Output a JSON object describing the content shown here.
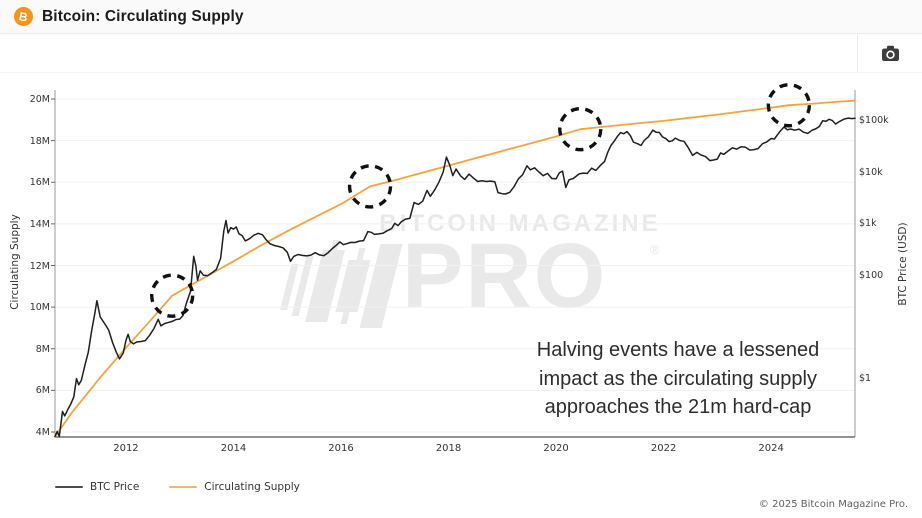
{
  "header": {
    "title": "Bitcoin: Circulating Supply",
    "logo_symbol": "B"
  },
  "watermark": {
    "line1": "BITCOIN MAGAZINE",
    "line2": "PRO",
    "registered": "®"
  },
  "annotation": {
    "text": "Halving events have a lessened\nimpact as the circulating supply\napproaches the 21m hard-cap"
  },
  "legend": [
    {
      "label": "BTC Price",
      "color": "#4d4d4d"
    },
    {
      "label": "Circulating Supply",
      "color": "#f4b660"
    }
  ],
  "footer": {
    "copyright": "© 2025 Bitcoin Magazine Pro."
  },
  "chart_data": {
    "type": "line",
    "title": "Bitcoin: Circulating Supply",
    "grid": "horizontal-only",
    "legend_position": "bottom-left",
    "x_axis": {
      "ticks": [
        2012,
        2014,
        2016,
        2018,
        2020,
        2022,
        2024
      ],
      "range": [
        2010.68,
        2025.56
      ]
    },
    "y_left": {
      "label": "Circulating Supply",
      "ticks": [
        "20M",
        "18M",
        "16M",
        "14M",
        "12M",
        "10M",
        "8M",
        "6M",
        "4M"
      ],
      "tick_values": [
        20,
        18,
        16,
        14,
        12,
        10,
        8,
        6,
        4
      ],
      "range": [
        3.8,
        20.3
      ],
      "unit": "M coins"
    },
    "y_right": {
      "label": "BTC Price (USD)",
      "scale": "log",
      "ticks": [
        "$100k",
        "$10k",
        "$1k",
        "$100",
        "$1"
      ],
      "tick_values": [
        100000,
        10000,
        1000,
        100,
        1
      ]
    },
    "halving_markers": [
      {
        "year": 2012.86,
        "supply_m": 10.55
      },
      {
        "year": 2016.54,
        "supply_m": 15.8
      },
      {
        "year": 2020.45,
        "supply_m": 18.55
      },
      {
        "year": 2024.33,
        "supply_m": 19.7
      }
    ],
    "series": [
      {
        "name": "Circulating Supply",
        "color": "#f2a43d",
        "width": 1.8,
        "axis": "left",
        "points": [
          [
            2010.68,
            3.78
          ],
          [
            2011.0,
            4.95
          ],
          [
            2011.5,
            6.55
          ],
          [
            2012.0,
            8.05
          ],
          [
            2012.4,
            9.2
          ],
          [
            2012.86,
            10.55
          ],
          [
            2013.2,
            11.05
          ],
          [
            2013.6,
            11.62
          ],
          [
            2014.0,
            12.2
          ],
          [
            2014.5,
            12.95
          ],
          [
            2015.0,
            13.65
          ],
          [
            2015.5,
            14.3
          ],
          [
            2016.0,
            14.95
          ],
          [
            2016.54,
            15.8
          ],
          [
            2017.0,
            16.1
          ],
          [
            2017.5,
            16.45
          ],
          [
            2018.0,
            16.8
          ],
          [
            2018.5,
            17.15
          ],
          [
            2019.0,
            17.5
          ],
          [
            2019.5,
            17.85
          ],
          [
            2020.0,
            18.2
          ],
          [
            2020.45,
            18.55
          ],
          [
            2021.0,
            18.7
          ],
          [
            2021.5,
            18.83
          ],
          [
            2022.0,
            18.95
          ],
          [
            2022.5,
            19.1
          ],
          [
            2023.0,
            19.25
          ],
          [
            2023.5,
            19.42
          ],
          [
            2024.0,
            19.58
          ],
          [
            2024.33,
            19.7
          ],
          [
            2024.8,
            19.78
          ],
          [
            2025.2,
            19.86
          ],
          [
            2025.56,
            19.92
          ]
        ]
      },
      {
        "name": "BTC Price",
        "color": "#1f1f1f",
        "width": 1.5,
        "axis": "right",
        "points": [
          [
            2010.68,
            0.06
          ],
          [
            2010.72,
            0.09
          ],
          [
            2010.76,
            0.07
          ],
          [
            2010.82,
            0.22
          ],
          [
            2010.86,
            0.18
          ],
          [
            2010.92,
            0.24
          ],
          [
            2010.97,
            0.3
          ],
          [
            2011.03,
            0.42
          ],
          [
            2011.08,
            0.95
          ],
          [
            2011.12,
            0.72
          ],
          [
            2011.17,
            0.88
          ],
          [
            2011.24,
            1.8
          ],
          [
            2011.3,
            3.1
          ],
          [
            2011.36,
            8.0
          ],
          [
            2011.42,
            17.5
          ],
          [
            2011.46,
            31
          ],
          [
            2011.52,
            15
          ],
          [
            2011.56,
            13
          ],
          [
            2011.62,
            10.5
          ],
          [
            2011.68,
            8.2
          ],
          [
            2011.75,
            4.8
          ],
          [
            2011.82,
            3.1
          ],
          [
            2011.88,
            2.3
          ],
          [
            2011.95,
            3.0
          ],
          [
            2012.0,
            5.3
          ],
          [
            2012.04,
            6.9
          ],
          [
            2012.08,
            5.0
          ],
          [
            2012.14,
            4.5
          ],
          [
            2012.2,
            4.9
          ],
          [
            2012.28,
            5.0
          ],
          [
            2012.36,
            5.2
          ],
          [
            2012.44,
            6.6
          ],
          [
            2012.52,
            8.9
          ],
          [
            2012.6,
            13.5
          ],
          [
            2012.65,
            10.1
          ],
          [
            2012.72,
            11.2
          ],
          [
            2012.8,
            11.8
          ],
          [
            2012.86,
            12.3
          ],
          [
            2012.93,
            13.4
          ],
          [
            2013.0,
            13.6
          ],
          [
            2013.06,
            16
          ],
          [
            2013.12,
            27
          ],
          [
            2013.2,
            47
          ],
          [
            2013.26,
            225
          ],
          [
            2013.3,
            145
          ],
          [
            2013.33,
            77
          ],
          [
            2013.38,
            118
          ],
          [
            2013.44,
            97
          ],
          [
            2013.52,
            95
          ],
          [
            2013.6,
            108
          ],
          [
            2013.68,
            125
          ],
          [
            2013.76,
            205
          ],
          [
            2013.82,
            700
          ],
          [
            2013.86,
            1120
          ],
          [
            2013.9,
            640
          ],
          [
            2013.95,
            810
          ],
          [
            2014.0,
            760
          ],
          [
            2014.05,
            840
          ],
          [
            2014.1,
            620
          ],
          [
            2014.16,
            570
          ],
          [
            2014.22,
            450
          ],
          [
            2014.3,
            495
          ],
          [
            2014.38,
            580
          ],
          [
            2014.46,
            630
          ],
          [
            2014.54,
            590
          ],
          [
            2014.6,
            480
          ],
          [
            2014.68,
            395
          ],
          [
            2014.76,
            365
          ],
          [
            2014.84,
            350
          ],
          [
            2014.92,
            330
          ],
          [
            2015.0,
            270
          ],
          [
            2015.06,
            180
          ],
          [
            2015.12,
            225
          ],
          [
            2015.2,
            245
          ],
          [
            2015.28,
            235
          ],
          [
            2015.36,
            230
          ],
          [
            2015.44,
            238
          ],
          [
            2015.52,
            265
          ],
          [
            2015.6,
            240
          ],
          [
            2015.68,
            232
          ],
          [
            2015.76,
            265
          ],
          [
            2015.84,
            320
          ],
          [
            2015.92,
            375
          ],
          [
            2015.98,
            430
          ],
          [
            2016.04,
            380
          ],
          [
            2016.1,
            395
          ],
          [
            2016.18,
            420
          ],
          [
            2016.26,
            418
          ],
          [
            2016.34,
            445
          ],
          [
            2016.42,
            455
          ],
          [
            2016.5,
            680
          ],
          [
            2016.56,
            660
          ],
          [
            2016.62,
            600
          ],
          [
            2016.7,
            615
          ],
          [
            2016.78,
            635
          ],
          [
            2016.86,
            710
          ],
          [
            2016.94,
            780
          ],
          [
            2017.0,
            985
          ],
          [
            2017.06,
            890
          ],
          [
            2017.12,
            1050
          ],
          [
            2017.2,
            1190
          ],
          [
            2017.28,
            1230
          ],
          [
            2017.36,
            2500
          ],
          [
            2017.44,
            2300
          ],
          [
            2017.52,
            2650
          ],
          [
            2017.6,
            4300
          ],
          [
            2017.66,
            3300
          ],
          [
            2017.74,
            4350
          ],
          [
            2017.82,
            6200
          ],
          [
            2017.9,
            9800
          ],
          [
            2017.96,
            19000
          ],
          [
            2018.02,
            13500
          ],
          [
            2018.08,
            8300
          ],
          [
            2018.14,
            11200
          ],
          [
            2018.22,
            8300
          ],
          [
            2018.3,
            7000
          ],
          [
            2018.38,
            8900
          ],
          [
            2018.46,
            7500
          ],
          [
            2018.54,
            6400
          ],
          [
            2018.62,
            6600
          ],
          [
            2018.7,
            6400
          ],
          [
            2018.78,
            6500
          ],
          [
            2018.86,
            6350
          ],
          [
            2018.92,
            3900
          ],
          [
            2019.0,
            3700
          ],
          [
            2019.06,
            3650
          ],
          [
            2019.14,
            3950
          ],
          [
            2019.22,
            5100
          ],
          [
            2019.3,
            7200
          ],
          [
            2019.38,
            8700
          ],
          [
            2019.46,
            12900
          ],
          [
            2019.52,
            10800
          ],
          [
            2019.6,
            11800
          ],
          [
            2019.68,
            9800
          ],
          [
            2019.76,
            8300
          ],
          [
            2019.84,
            9200
          ],
          [
            2019.92,
            7300
          ],
          [
            2020.0,
            7200
          ],
          [
            2020.06,
            9400
          ],
          [
            2020.12,
            10200
          ],
          [
            2020.18,
            4900
          ],
          [
            2020.24,
            6900
          ],
          [
            2020.32,
            7300
          ],
          [
            2020.43,
            9000
          ],
          [
            2020.5,
            9300
          ],
          [
            2020.58,
            9200
          ],
          [
            2020.66,
            11600
          ],
          [
            2020.74,
            10500
          ],
          [
            2020.82,
            13000
          ],
          [
            2020.9,
            15600
          ],
          [
            2020.96,
            23500
          ],
          [
            2021.02,
            32000
          ],
          [
            2021.08,
            38500
          ],
          [
            2021.14,
            48000
          ],
          [
            2021.2,
            57000
          ],
          [
            2021.26,
            54000
          ],
          [
            2021.32,
            59500
          ],
          [
            2021.38,
            50000
          ],
          [
            2021.44,
            37000
          ],
          [
            2021.52,
            34500
          ],
          [
            2021.58,
            32000
          ],
          [
            2021.64,
            40000
          ],
          [
            2021.72,
            47500
          ],
          [
            2021.8,
            63500
          ],
          [
            2021.86,
            58000
          ],
          [
            2021.92,
            57500
          ],
          [
            2021.98,
            47000
          ],
          [
            2022.04,
            43500
          ],
          [
            2022.1,
            38000
          ],
          [
            2022.16,
            39500
          ],
          [
            2022.22,
            44500
          ],
          [
            2022.3,
            40000
          ],
          [
            2022.38,
            38500
          ],
          [
            2022.46,
            29000
          ],
          [
            2022.54,
            20500
          ],
          [
            2022.62,
            23500
          ],
          [
            2022.7,
            20800
          ],
          [
            2022.78,
            19500
          ],
          [
            2022.86,
            16300
          ],
          [
            2022.94,
            16800
          ],
          [
            2023.0,
            17500
          ],
          [
            2023.06,
            23000
          ],
          [
            2023.12,
            21500
          ],
          [
            2023.2,
            25000
          ],
          [
            2023.28,
            28800
          ],
          [
            2023.36,
            27200
          ],
          [
            2023.44,
            30200
          ],
          [
            2023.52,
            29800
          ],
          [
            2023.6,
            26100
          ],
          [
            2023.68,
            26500
          ],
          [
            2023.76,
            28000
          ],
          [
            2023.84,
            34600
          ],
          [
            2023.92,
            37500
          ],
          [
            2024.0,
            43800
          ],
          [
            2024.06,
            42800
          ],
          [
            2024.12,
            52000
          ],
          [
            2024.18,
            62500
          ],
          [
            2024.24,
            73000
          ],
          [
            2024.3,
            64500
          ],
          [
            2024.36,
            67000
          ],
          [
            2024.44,
            63500
          ],
          [
            2024.52,
            66500
          ],
          [
            2024.6,
            58000
          ],
          [
            2024.68,
            55000
          ],
          [
            2024.76,
            63000
          ],
          [
            2024.84,
            68500
          ],
          [
            2024.9,
            75500
          ],
          [
            2024.96,
            97000
          ],
          [
            2025.02,
            94500
          ],
          [
            2025.08,
            103000
          ],
          [
            2025.14,
            97500
          ],
          [
            2025.2,
            83500
          ],
          [
            2025.28,
            94500
          ],
          [
            2025.36,
            104500
          ],
          [
            2025.44,
            109000
          ],
          [
            2025.5,
            106500
          ],
          [
            2025.56,
            108000
          ]
        ]
      }
    ]
  }
}
